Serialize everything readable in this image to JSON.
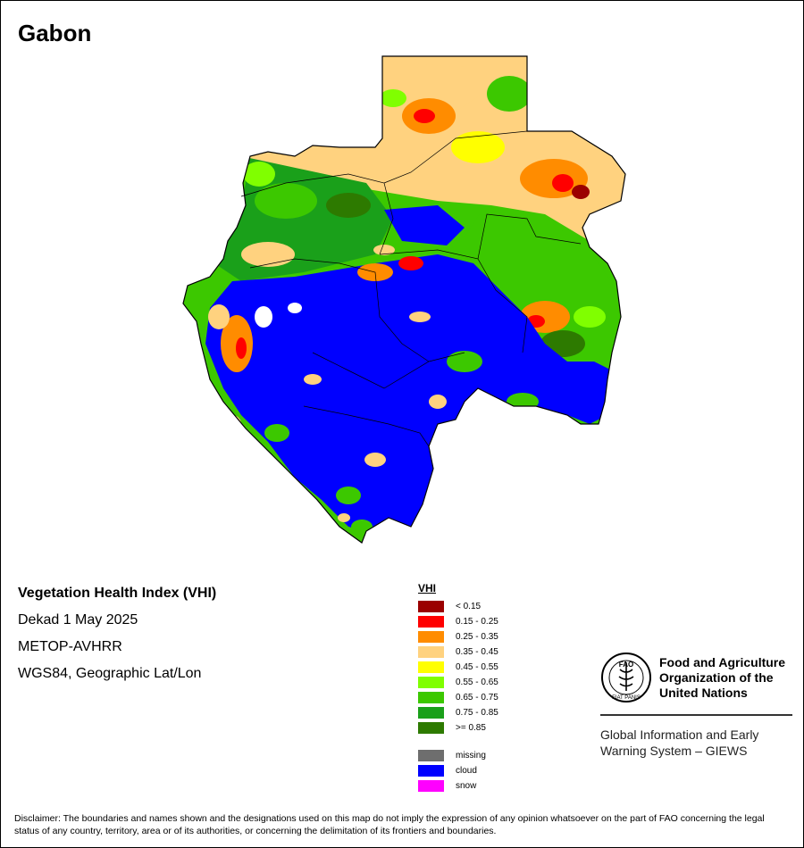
{
  "map": {
    "country": "Gabon",
    "info": {
      "index_name": "Vegetation Health Index (VHI)",
      "period": "Dekad 1 May 2025",
      "sensor": "METOP-AVHRR",
      "projection": "WGS84, Geographic Lat/Lon"
    },
    "legend": {
      "title": "VHI",
      "classes": [
        {
          "label": "< 0.15",
          "color": "#9b0000"
        },
        {
          "label": "0.15 - 0.25",
          "color": "#ff0000"
        },
        {
          "label": "0.25 - 0.35",
          "color": "#ff8c00"
        },
        {
          "label": "0.35 - 0.45",
          "color": "#ffd27f"
        },
        {
          "label": "0.45 - 0.55",
          "color": "#ffff00"
        },
        {
          "label": "0.55 - 0.65",
          "color": "#80ff00"
        },
        {
          "label": "0.65 - 0.75",
          "color": "#3cc800"
        },
        {
          "label": "0.75 - 0.85",
          "color": "#1aa01a"
        },
        {
          "label": ">= 0.85",
          "color": "#2d7a00"
        }
      ],
      "special": [
        {
          "label": "missing",
          "color": "#6e6e6e"
        },
        {
          "label": "cloud",
          "color": "#0000ff"
        },
        {
          "label": "snow",
          "color": "#ff00ff"
        }
      ]
    },
    "organization": {
      "logo_text": "FAO",
      "logo_motto": "FIAT PANIS",
      "name": "Food and Agriculture Organization of the United Nations",
      "system": "Global Information and Early Warning System – GIEWS"
    },
    "disclaimer": "Disclaimer: The boundaries and names shown and the designations used on this map do not imply the expression of any opinion whatsoever on the part of FAO concerning the legal status of any country, territory, area or of its authorities, or concerning the delimitation of its frontiers and boundaries."
  }
}
